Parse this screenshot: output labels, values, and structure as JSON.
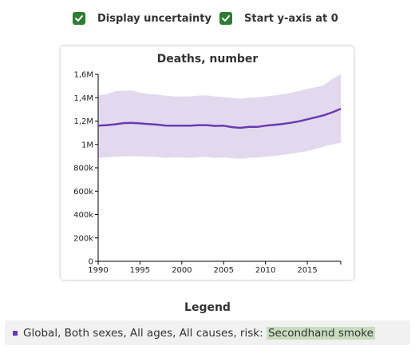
{
  "controls": {
    "uncertainty": {
      "label": "Display uncertainty",
      "checked": true
    },
    "start_zero": {
      "label": "Start y-axis at 0",
      "checked": true
    }
  },
  "colors": {
    "checkbox": "#2e7d32",
    "line": "#6a3ab2",
    "band": "#e2d9ef",
    "highlight": "#c8dcc0"
  },
  "chart_data": {
    "type": "line",
    "title": "Deaths, number",
    "xlabel": "",
    "ylabel": "",
    "xlim": [
      1990,
      2019
    ],
    "ylim": [
      0,
      1600000
    ],
    "x_ticks": [
      1990,
      1995,
      2000,
      2005,
      2010,
      2015
    ],
    "y_ticks": [
      0,
      200000,
      400000,
      600000,
      800000,
      1000000,
      1200000,
      1400000,
      1600000
    ],
    "y_tick_labels": [
      "0",
      "200k",
      "400k",
      "600k",
      "800k",
      "1M",
      "1,2M",
      "1,4M",
      "1,6M"
    ],
    "grid": false,
    "x": [
      1990,
      1991,
      1992,
      1993,
      1994,
      1995,
      1996,
      1997,
      1998,
      1999,
      2000,
      2001,
      2002,
      2003,
      2004,
      2005,
      2006,
      2007,
      2008,
      2009,
      2010,
      2011,
      2012,
      2013,
      2014,
      2015,
      2016,
      2017,
      2018,
      2019
    ],
    "series": [
      {
        "values": [
          1160000,
          1165000,
          1172000,
          1182000,
          1185000,
          1180000,
          1175000,
          1170000,
          1162000,
          1160000,
          1160000,
          1160000,
          1165000,
          1165000,
          1158000,
          1160000,
          1148000,
          1142000,
          1150000,
          1150000,
          1160000,
          1168000,
          1175000,
          1185000,
          1198000,
          1215000,
          1232000,
          1250000,
          1275000,
          1305000
        ],
        "upper": [
          1420000,
          1430000,
          1455000,
          1460000,
          1462000,
          1445000,
          1432000,
          1428000,
          1418000,
          1412000,
          1410000,
          1412000,
          1418000,
          1420000,
          1410000,
          1405000,
          1398000,
          1392000,
          1400000,
          1402000,
          1412000,
          1418000,
          1428000,
          1440000,
          1458000,
          1475000,
          1490000,
          1508000,
          1560000,
          1600000
        ],
        "lower": [
          885000,
          890000,
          895000,
          898000,
          900000,
          898000,
          895000,
          893000,
          885000,
          890000,
          888000,
          885000,
          890000,
          893000,
          885000,
          888000,
          882000,
          878000,
          885000,
          888000,
          895000,
          902000,
          910000,
          920000,
          932000,
          942000,
          962000,
          982000,
          1000000,
          1015000
        ]
      }
    ]
  },
  "legend": {
    "title": "Legend",
    "item_prefix": "Global, Both sexes, All ages, All causes, risk:",
    "item_highlight": "Secondhand smoke"
  }
}
